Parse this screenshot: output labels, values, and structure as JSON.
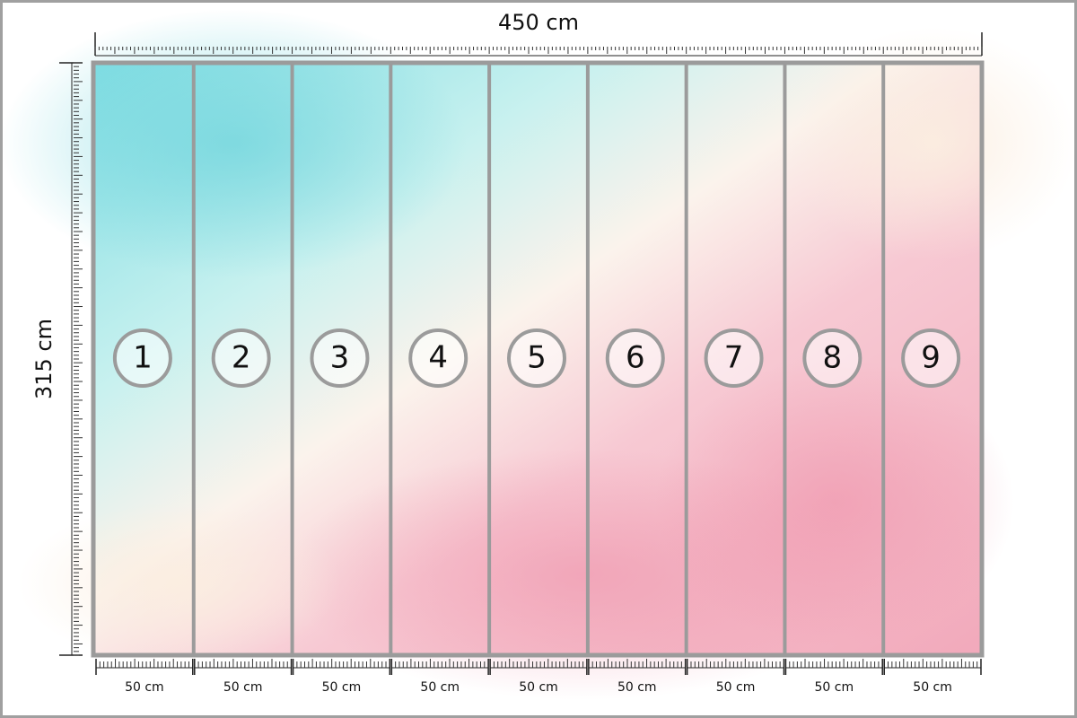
{
  "dimensions": {
    "width": "450 cm",
    "height": "315 cm"
  },
  "panels": [
    {
      "number": "1",
      "width": "50 cm"
    },
    {
      "number": "2",
      "width": "50 cm"
    },
    {
      "number": "3",
      "width": "50 cm"
    },
    {
      "number": "4",
      "width": "50 cm"
    },
    {
      "number": "5",
      "width": "50 cm"
    },
    {
      "number": "6",
      "width": "50 cm"
    },
    {
      "number": "7",
      "width": "50 cm"
    },
    {
      "number": "8",
      "width": "50 cm"
    },
    {
      "number": "9",
      "width": "50 cm"
    }
  ]
}
